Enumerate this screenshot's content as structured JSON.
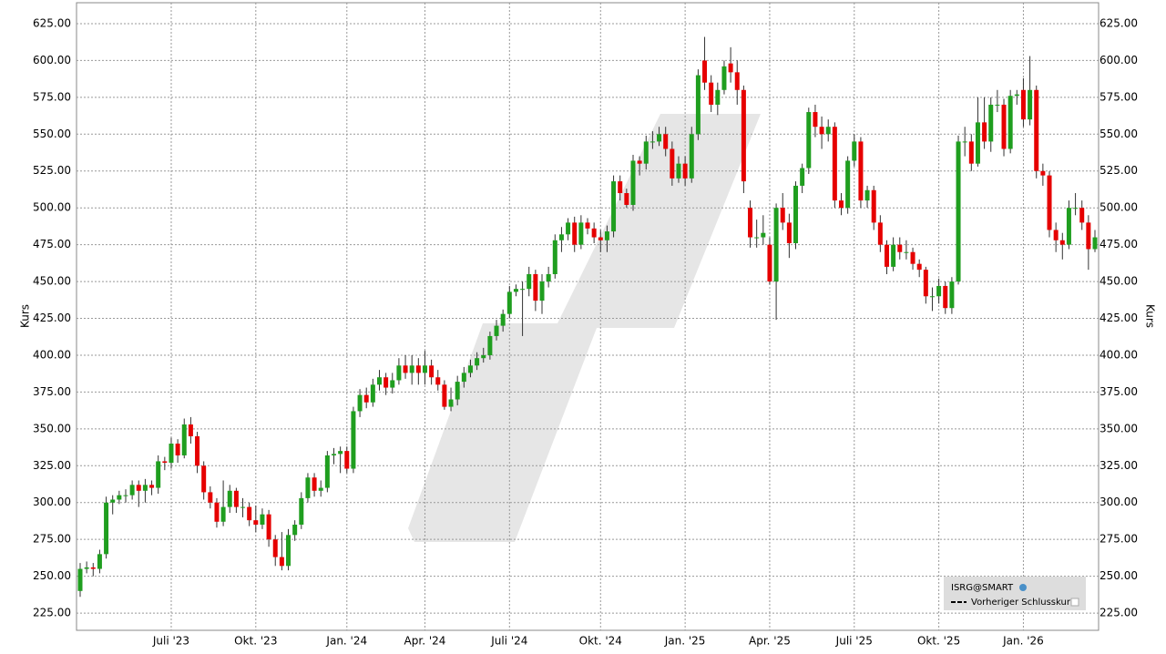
{
  "chart_data": {
    "type": "candlestick",
    "y_label": "Kurs",
    "legend": {
      "symbol": "ISRG@SMART",
      "previous_close": "Vorheriger Schlusskurs"
    },
    "up_color": "#1f9e1f",
    "down_color": "#e60000",
    "grid": true,
    "ylim": [
      213.3,
      639.2
    ],
    "yticks": [
      {
        "value": 225,
        "label": "225.00"
      },
      {
        "value": 250,
        "label": "250.00"
      },
      {
        "value": 275,
        "label": "275.00"
      },
      {
        "value": 300,
        "label": "300.00"
      },
      {
        "value": 325,
        "label": "325.00"
      },
      {
        "value": 350,
        "label": "350.00"
      },
      {
        "value": 375,
        "label": "375.00"
      },
      {
        "value": 400,
        "label": "400.00"
      },
      {
        "value": 425,
        "label": "425.00"
      },
      {
        "value": 450,
        "label": "450.00"
      },
      {
        "value": 475,
        "label": "475.00"
      },
      {
        "value": 500,
        "label": "500.00"
      },
      {
        "value": 525,
        "label": "525.00"
      },
      {
        "value": 550,
        "label": "550.00"
      },
      {
        "value": 575,
        "label": "575.00"
      },
      {
        "value": 600,
        "label": "600.00"
      },
      {
        "value": 625,
        "label": "625.00"
      }
    ],
    "categories": [
      null,
      null,
      null,
      null,
      null,
      null,
      null,
      null,
      null,
      null,
      null,
      null,
      null,
      null,
      "Juli '23",
      null,
      null,
      null,
      null,
      null,
      null,
      null,
      null,
      null,
      null,
      null,
      null,
      "Okt. '23",
      null,
      null,
      null,
      null,
      null,
      null,
      null,
      null,
      null,
      null,
      null,
      null,
      null,
      "Jan. '24",
      null,
      null,
      null,
      null,
      null,
      null,
      null,
      null,
      null,
      null,
      null,
      "Apr. '24",
      null,
      null,
      null,
      null,
      null,
      null,
      null,
      null,
      null,
      null,
      null,
      null,
      "Juli '24",
      null,
      null,
      null,
      null,
      null,
      null,
      null,
      null,
      null,
      null,
      null,
      null,
      null,
      "Okt. '24",
      null,
      null,
      null,
      null,
      null,
      null,
      null,
      null,
      null,
      null,
      null,
      null,
      "Jan. '25",
      null,
      null,
      null,
      null,
      null,
      null,
      null,
      null,
      null,
      null,
      null,
      null,
      "Apr. '25",
      null,
      null,
      null,
      null,
      null,
      null,
      null,
      null,
      null,
      null,
      null,
      null,
      "Juli '25",
      null,
      null,
      null,
      null,
      null,
      null,
      null,
      null,
      null,
      null,
      null,
      null,
      "Okt. '25",
      null,
      null,
      null,
      null,
      null,
      null,
      null,
      null,
      null,
      null,
      null,
      null,
      "Jan. '26",
      null,
      null,
      null,
      null,
      null,
      null,
      null,
      null,
      null,
      null,
      null
    ],
    "ohlc": [
      [
        240,
        259,
        236,
        255
      ],
      [
        255,
        260,
        252,
        256
      ],
      [
        256,
        259,
        250,
        255
      ],
      [
        255,
        268,
        252,
        265
      ],
      [
        265,
        304,
        262,
        300
      ],
      [
        300,
        305,
        292,
        302
      ],
      [
        302,
        308,
        299,
        305
      ],
      [
        305,
        309,
        300,
        305
      ],
      [
        305,
        315,
        302,
        312
      ],
      [
        312,
        315,
        297,
        308
      ],
      [
        308,
        316,
        300,
        312
      ],
      [
        312,
        315,
        305,
        310
      ],
      [
        310,
        332,
        306,
        328
      ],
      [
        328,
        331,
        322,
        327
      ],
      [
        327,
        344,
        323,
        340
      ],
      [
        340,
        343,
        327,
        332
      ],
      [
        332,
        357,
        330,
        353
      ],
      [
        353,
        358,
        340,
        345
      ],
      [
        345,
        348,
        320,
        325
      ],
      [
        325,
        328,
        302,
        307
      ],
      [
        307,
        311,
        296,
        300
      ],
      [
        300,
        303,
        283,
        287
      ],
      [
        287,
        315,
        284,
        297
      ],
      [
        297,
        312,
        293,
        308
      ],
      [
        308,
        310,
        293,
        297
      ],
      [
        297,
        303,
        290,
        297
      ],
      [
        297,
        300,
        284,
        288
      ],
      [
        288,
        298,
        280,
        285
      ],
      [
        285,
        296,
        282,
        292
      ],
      [
        292,
        295,
        270,
        275
      ],
      [
        275,
        278,
        257,
        263
      ],
      [
        263,
        280,
        254,
        257
      ],
      [
        257,
        282,
        254,
        278
      ],
      [
        278,
        288,
        274,
        285
      ],
      [
        285,
        307,
        282,
        303
      ],
      [
        303,
        320,
        300,
        317
      ],
      [
        317,
        320,
        304,
        308
      ],
      [
        308,
        315,
        304,
        310
      ],
      [
        310,
        335,
        307,
        332
      ],
      [
        332,
        337,
        326,
        333
      ],
      [
        333,
        338,
        320,
        335
      ],
      [
        335,
        338,
        320,
        323
      ],
      [
        323,
        365,
        320,
        362
      ],
      [
        362,
        377,
        358,
        373
      ],
      [
        373,
        378,
        364,
        368
      ],
      [
        368,
        384,
        365,
        380
      ],
      [
        380,
        390,
        376,
        385
      ],
      [
        385,
        388,
        373,
        378
      ],
      [
        378,
        388,
        374,
        383
      ],
      [
        383,
        398,
        380,
        393
      ],
      [
        393,
        400,
        384,
        388
      ],
      [
        388,
        400,
        380,
        393
      ],
      [
        393,
        398,
        380,
        388
      ],
      [
        388,
        403,
        380,
        393
      ],
      [
        393,
        397,
        380,
        385
      ],
      [
        385,
        390,
        376,
        380
      ],
      [
        380,
        383,
        363,
        365
      ],
      [
        365,
        378,
        362,
        370
      ],
      [
        370,
        386,
        366,
        382
      ],
      [
        382,
        392,
        378,
        388
      ],
      [
        388,
        397,
        385,
        393
      ],
      [
        393,
        402,
        390,
        398
      ],
      [
        398,
        405,
        395,
        400
      ],
      [
        400,
        416,
        397,
        413
      ],
      [
        413,
        424,
        410,
        420
      ],
      [
        420,
        431,
        416,
        428
      ],
      [
        428,
        447,
        425,
        443
      ],
      [
        443,
        448,
        440,
        445
      ],
      [
        445,
        450,
        413,
        445
      ],
      [
        445,
        460,
        440,
        455
      ],
      [
        455,
        458,
        430,
        437
      ],
      [
        437,
        455,
        428,
        450
      ],
      [
        450,
        460,
        446,
        455
      ],
      [
        455,
        482,
        452,
        478
      ],
      [
        478,
        487,
        470,
        482
      ],
      [
        482,
        493,
        478,
        490
      ],
      [
        490,
        494,
        470,
        475
      ],
      [
        475,
        495,
        472,
        490
      ],
      [
        490,
        493,
        482,
        486
      ],
      [
        486,
        490,
        476,
        480
      ],
      [
        480,
        485,
        470,
        478
      ],
      [
        478,
        488,
        470,
        484
      ],
      [
        484,
        522,
        480,
        518
      ],
      [
        518,
        522,
        505,
        510
      ],
      [
        510,
        513,
        500,
        502
      ],
      [
        502,
        536,
        498,
        532
      ],
      [
        532,
        535,
        522,
        530
      ],
      [
        530,
        549,
        526,
        545
      ],
      [
        545,
        552,
        540,
        545
      ],
      [
        545,
        555,
        542,
        550
      ],
      [
        550,
        555,
        535,
        540
      ],
      [
        540,
        545,
        515,
        520
      ],
      [
        520,
        535,
        517,
        530
      ],
      [
        530,
        535,
        515,
        520
      ],
      [
        520,
        555,
        517,
        550
      ],
      [
        550,
        594,
        546,
        590
      ],
      [
        600,
        616,
        580,
        585
      ],
      [
        585,
        590,
        565,
        570
      ],
      [
        570,
        585,
        563,
        580
      ],
      [
        580,
        600,
        577,
        596
      ],
      [
        598,
        609,
        585,
        592
      ],
      [
        592,
        600,
        570,
        580
      ],
      [
        580,
        583,
        510,
        518
      ],
      [
        500,
        505,
        473,
        480
      ],
      [
        480,
        492,
        473,
        480
      ],
      [
        480,
        495,
        475,
        483
      ],
      [
        475,
        480,
        448,
        450
      ],
      [
        450,
        503,
        424,
        500
      ],
      [
        500,
        510,
        485,
        490
      ],
      [
        490,
        496,
        466,
        476
      ],
      [
        476,
        518,
        472,
        515
      ],
      [
        515,
        530,
        510,
        527
      ],
      [
        527,
        568,
        523,
        565
      ],
      [
        565,
        570,
        548,
        555
      ],
      [
        555,
        562,
        540,
        550
      ],
      [
        550,
        560,
        545,
        555
      ],
      [
        555,
        558,
        500,
        505
      ],
      [
        505,
        510,
        495,
        500
      ],
      [
        500,
        535,
        496,
        532
      ],
      [
        532,
        550,
        528,
        545
      ],
      [
        545,
        548,
        500,
        505
      ],
      [
        505,
        515,
        500,
        512
      ],
      [
        512,
        515,
        485,
        490
      ],
      [
        490,
        495,
        470,
        475
      ],
      [
        475,
        478,
        455,
        460
      ],
      [
        460,
        480,
        457,
        475
      ],
      [
        475,
        480,
        465,
        470
      ],
      [
        470,
        478,
        465,
        470
      ],
      [
        470,
        473,
        458,
        462
      ],
      [
        462,
        465,
        453,
        458
      ],
      [
        458,
        460,
        435,
        440
      ],
      [
        440,
        446,
        430,
        440
      ],
      [
        440,
        452,
        435,
        447
      ],
      [
        447,
        450,
        428,
        432
      ],
      [
        432,
        453,
        428,
        450
      ],
      [
        450,
        549,
        448,
        545
      ],
      [
        545,
        555,
        535,
        545
      ],
      [
        545,
        550,
        525,
        530
      ],
      [
        530,
        575,
        528,
        558
      ],
      [
        558,
        575,
        540,
        545
      ],
      [
        545,
        575,
        538,
        570
      ],
      [
        570,
        580,
        565,
        570
      ],
      [
        570,
        574,
        535,
        540
      ],
      [
        540,
        580,
        537,
        576
      ],
      [
        576,
        580,
        570,
        577
      ],
      [
        580,
        588,
        555,
        560
      ],
      [
        560,
        603,
        556,
        580
      ],
      [
        580,
        583,
        520,
        525
      ],
      [
        525,
        530,
        515,
        522
      ],
      [
        522,
        525,
        480,
        485
      ],
      [
        485,
        490,
        470,
        478
      ],
      [
        478,
        483,
        465,
        475
      ],
      [
        475,
        505,
        472,
        500
      ],
      [
        500,
        510,
        495,
        500
      ],
      [
        500,
        505,
        485,
        490
      ],
      [
        490,
        495,
        458,
        472
      ],
      [
        472,
        485,
        470,
        480
      ]
    ]
  }
}
